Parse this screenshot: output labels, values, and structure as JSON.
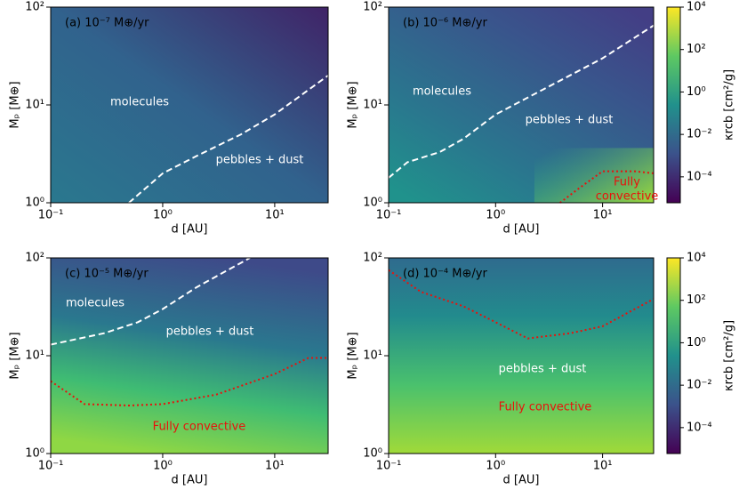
{
  "chart_data": [
    {
      "type": "contour",
      "title": "(a)  10⁻⁷ M⊕/yr",
      "xlabel": "d [AU]",
      "ylabel": "Mₚ [M⊕]",
      "xscale": "log",
      "yscale": "log",
      "xlim": [
        0.1,
        30
      ],
      "ylim": [
        1,
        100
      ],
      "xticks": [
        {
          "value": 0.1,
          "label": "10⁻¹"
        },
        {
          "value": 1,
          "label": "10⁰"
        },
        {
          "value": 10,
          "label": "10¹"
        }
      ],
      "yticks": [
        {
          "value": 1,
          "label": "10⁰"
        },
        {
          "value": 10,
          "label": "10¹"
        },
        {
          "value": 100,
          "label": "10²"
        }
      ],
      "series": [
        {
          "color": "#ffffff",
          "style": "dashed",
          "x": [
            0.5,
            0.6,
            1,
            2,
            5,
            10,
            30
          ],
          "values": [
            1,
            1.2,
            2,
            3,
            5,
            8,
            20
          ]
        }
      ],
      "annotations": [
        {
          "text": "molecules",
          "color": "#ffffff"
        },
        {
          "text": "pebbles + dust",
          "color": "#ffffff"
        }
      ]
    },
    {
      "type": "contour",
      "title": "(b)  10⁻⁶ M⊕/yr",
      "xlabel": "d [AU]",
      "ylabel": "Mₚ [M⊕]",
      "xscale": "log",
      "yscale": "log",
      "xlim": [
        0.1,
        30
      ],
      "ylim": [
        1,
        100
      ],
      "xticks": [
        {
          "value": 0.1,
          "label": "10⁻¹"
        },
        {
          "value": 1,
          "label": "10⁰"
        },
        {
          "value": 10,
          "label": "10¹"
        }
      ],
      "yticks": [
        {
          "value": 1,
          "label": "10⁰"
        },
        {
          "value": 10,
          "label": "10¹"
        },
        {
          "value": 100,
          "label": "10²"
        }
      ],
      "series": [
        {
          "color": "#ffffff",
          "style": "dashed",
          "x": [
            0.1,
            0.15,
            0.3,
            0.5,
            1,
            3,
            10,
            30
          ],
          "values": [
            1.8,
            2.6,
            3.3,
            4.5,
            8,
            15,
            30,
            65
          ]
        },
        {
          "color": "#e8120c",
          "style": "dotted",
          "x": [
            4,
            6,
            10,
            20,
            30
          ],
          "values": [
            1,
            1.4,
            2.1,
            2.1,
            2.0
          ]
        }
      ],
      "annotations": [
        {
          "text": "molecules",
          "color": "#ffffff"
        },
        {
          "text": "pebbles + dust",
          "color": "#ffffff"
        },
        {
          "text": "Fully",
          "color": "#e8120c"
        },
        {
          "text": "convective",
          "color": "#e8120c"
        }
      ],
      "colorbar": {
        "label": "κrcb [cm²/g]",
        "scale": "log",
        "lim": [
          6e-06,
          10000
        ],
        "ticks": [
          {
            "value": 10000,
            "label": "10⁴"
          },
          {
            "value": 100,
            "label": "10²"
          },
          {
            "value": 1,
            "label": "10⁰"
          },
          {
            "value": 0.01,
            "label": "10⁻²"
          },
          {
            "value": 0.0001,
            "label": "10⁻⁴"
          }
        ]
      }
    },
    {
      "type": "contour",
      "title": "(c)  10⁻⁵ M⊕/yr",
      "xlabel": "d [AU]",
      "ylabel": "Mₚ [M⊕]",
      "xscale": "log",
      "yscale": "log",
      "xlim": [
        0.1,
        30
      ],
      "ylim": [
        1,
        100
      ],
      "xticks": [
        {
          "value": 0.1,
          "label": "10⁻¹"
        },
        {
          "value": 1,
          "label": "10⁰"
        },
        {
          "value": 10,
          "label": "10¹"
        }
      ],
      "yticks": [
        {
          "value": 1,
          "label": "10⁰"
        },
        {
          "value": 10,
          "label": "10¹"
        },
        {
          "value": 100,
          "label": "10²"
        }
      ],
      "series": [
        {
          "color": "#ffffff",
          "style": "dashed",
          "x": [
            0.1,
            0.3,
            0.6,
            1,
            2,
            6
          ],
          "values": [
            13,
            17,
            22,
            30,
            50,
            100
          ]
        },
        {
          "color": "#e8120c",
          "style": "dotted",
          "x": [
            0.1,
            0.2,
            0.5,
            1,
            3,
            10,
            20,
            30
          ],
          "values": [
            5.5,
            3.2,
            3.1,
            3.2,
            4,
            6.5,
            9.5,
            9.5
          ]
        }
      ],
      "annotations": [
        {
          "text": "molecules",
          "color": "#ffffff"
        },
        {
          "text": "pebbles + dust",
          "color": "#ffffff"
        },
        {
          "text": "Fully convective",
          "color": "#e8120c"
        }
      ]
    },
    {
      "type": "contour",
      "title": "(d)  10⁻⁴ M⊕/yr",
      "xlabel": "d [AU]",
      "ylabel": "Mₚ [M⊕]",
      "xscale": "log",
      "yscale": "log",
      "xlim": [
        0.1,
        30
      ],
      "ylim": [
        1,
        100
      ],
      "xticks": [
        {
          "value": 0.1,
          "label": "10⁻¹"
        },
        {
          "value": 1,
          "label": "10⁰"
        },
        {
          "value": 10,
          "label": "10¹"
        }
      ],
      "yticks": [
        {
          "value": 1,
          "label": "10⁰"
        },
        {
          "value": 10,
          "label": "10¹"
        },
        {
          "value": 100,
          "label": "10²"
        }
      ],
      "series": [
        {
          "color": "#e8120c",
          "style": "dotted",
          "x": [
            0.1,
            0.2,
            0.5,
            1,
            2,
            5,
            10,
            30
          ],
          "values": [
            75,
            45,
            32,
            22,
            15,
            17,
            20,
            38
          ]
        }
      ],
      "annotations": [
        {
          "text": "pebbles + dust",
          "color": "#ffffff"
        },
        {
          "text": "Fully convective",
          "color": "#e8120c"
        }
      ],
      "colorbar": {
        "label": "κrcb [cm²/g]",
        "scale": "log",
        "lim": [
          6e-06,
          10000
        ],
        "ticks": [
          {
            "value": 10000,
            "label": "10⁴"
          },
          {
            "value": 100,
            "label": "10²"
          },
          {
            "value": 1,
            "label": "10⁰"
          },
          {
            "value": 0.01,
            "label": "10⁻²"
          },
          {
            "value": 0.0001,
            "label": "10⁻⁴"
          }
        ]
      }
    }
  ]
}
